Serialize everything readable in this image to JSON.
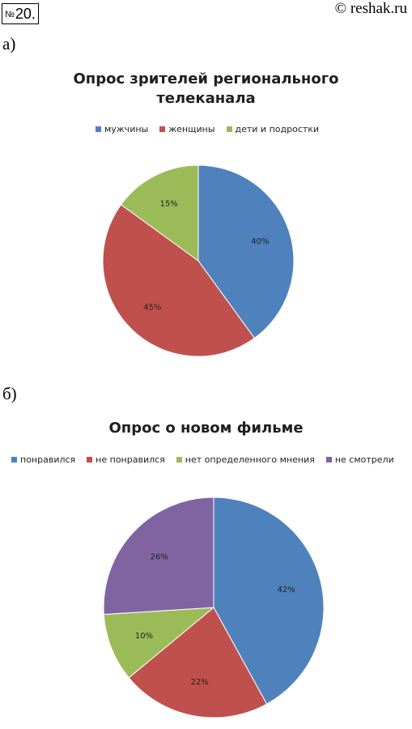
{
  "header": {
    "number_sign": "№",
    "number": "20.",
    "copyright": "© reshak.ru"
  },
  "chart_data": [
    {
      "part_label": "а)",
      "type": "pie",
      "title_lines": [
        "Опрос зрителей регионального",
        "телеканала"
      ],
      "categories": [
        "мужчины",
        "женщины",
        "дети и подростки"
      ],
      "values": [
        40,
        45,
        15
      ],
      "data_labels": [
        "40%",
        "45%",
        "15%"
      ],
      "colors": [
        "#4f81bd",
        "#c0504d",
        "#9bbb59"
      ],
      "legend": "top"
    },
    {
      "part_label": "б)",
      "type": "pie",
      "title_lines": [
        "Опрос о новом фильме"
      ],
      "categories": [
        "понравился",
        "не понравился",
        "нет определенного мнения",
        "не смотрели"
      ],
      "values": [
        42,
        22,
        10,
        26
      ],
      "data_labels": [
        "42%",
        "22%",
        "10%",
        "26%"
      ],
      "colors": [
        "#4f81bd",
        "#c0504d",
        "#9bbb59",
        "#8064a2"
      ],
      "legend": "top"
    }
  ]
}
